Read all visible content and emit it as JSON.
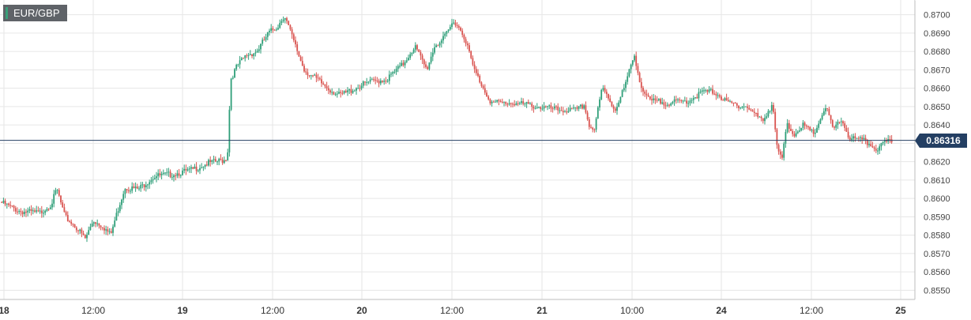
{
  "symbol": "EUR/GBP",
  "current_price": "0.86316",
  "colors": {
    "up": "#2e9e78",
    "down": "#d9534f",
    "price_line": "#243f63"
  },
  "chart_data": {
    "type": "candlestick",
    "title": "EUR/GBP",
    "ylim": [
      0.8545,
      0.8708
    ],
    "y_ticks": [
      0.855,
      0.856,
      0.857,
      0.858,
      0.859,
      0.86,
      0.861,
      0.862,
      0.863,
      0.864,
      0.865,
      0.866,
      0.867,
      0.868,
      0.869,
      0.87
    ],
    "y_tick_labels": [
      "0.8550",
      "0.8560",
      "0.8570",
      "0.8580",
      "0.8590",
      "0.8600",
      "0.8610",
      "0.8620",
      "0.8630",
      "0.8640",
      "0.8650",
      "0.8660",
      "0.8670",
      "0.8680",
      "0.8690",
      "0.8700"
    ],
    "x_ticks": [
      "18",
      "12:00",
      "19",
      "12:00",
      "20",
      "12:00",
      "21",
      "10:00",
      "24",
      "12:00",
      "25"
    ],
    "grid": true,
    "current_price": 0.86316,
    "price_path": [
      {
        "t": 0,
        "p": 0.8598
      },
      {
        "t": 25,
        "p": 0.8593
      },
      {
        "t": 50,
        "p": 0.8592
      },
      {
        "t": 65,
        "p": 0.8597
      },
      {
        "t": 72,
        "p": 0.8605
      },
      {
        "t": 82,
        "p": 0.859
      },
      {
        "t": 95,
        "p": 0.8585
      },
      {
        "t": 108,
        "p": 0.8578
      },
      {
        "t": 118,
        "p": 0.8588
      },
      {
        "t": 130,
        "p": 0.8585
      },
      {
        "t": 140,
        "p": 0.858
      },
      {
        "t": 150,
        "p": 0.8595
      },
      {
        "t": 158,
        "p": 0.8606
      },
      {
        "t": 175,
        "p": 0.8605
      },
      {
        "t": 195,
        "p": 0.8612
      },
      {
        "t": 215,
        "p": 0.8613
      },
      {
        "t": 240,
        "p": 0.8615
      },
      {
        "t": 262,
        "p": 0.8619
      },
      {
        "t": 285,
        "p": 0.8621
      },
      {
        "t": 288,
        "p": 0.8624
      },
      {
        "t": 292,
        "p": 0.8665
      },
      {
        "t": 300,
        "p": 0.8672
      },
      {
        "t": 312,
        "p": 0.8678
      },
      {
        "t": 325,
        "p": 0.868
      },
      {
        "t": 340,
        "p": 0.869
      },
      {
        "t": 352,
        "p": 0.8694
      },
      {
        "t": 360,
        "p": 0.87
      },
      {
        "t": 372,
        "p": 0.8685
      },
      {
        "t": 385,
        "p": 0.867
      },
      {
        "t": 400,
        "p": 0.8665
      },
      {
        "t": 415,
        "p": 0.866
      },
      {
        "t": 430,
        "p": 0.8656
      },
      {
        "t": 450,
        "p": 0.866
      },
      {
        "t": 465,
        "p": 0.8663
      },
      {
        "t": 490,
        "p": 0.8665
      },
      {
        "t": 510,
        "p": 0.8673
      },
      {
        "t": 525,
        "p": 0.8683
      },
      {
        "t": 540,
        "p": 0.867
      },
      {
        "t": 550,
        "p": 0.8683
      },
      {
        "t": 562,
        "p": 0.8687
      },
      {
        "t": 575,
        "p": 0.8697
      },
      {
        "t": 588,
        "p": 0.8688
      },
      {
        "t": 600,
        "p": 0.867
      },
      {
        "t": 612,
        "p": 0.866
      },
      {
        "t": 622,
        "p": 0.8652
      },
      {
        "t": 650,
        "p": 0.8652
      },
      {
        "t": 680,
        "p": 0.865
      },
      {
        "t": 710,
        "p": 0.8648
      },
      {
        "t": 730,
        "p": 0.8648
      },
      {
        "t": 740,
        "p": 0.8651
      },
      {
        "t": 745,
        "p": 0.864
      },
      {
        "t": 752,
        "p": 0.8637
      },
      {
        "t": 762,
        "p": 0.866
      },
      {
        "t": 770,
        "p": 0.8655
      },
      {
        "t": 778,
        "p": 0.8648
      },
      {
        "t": 790,
        "p": 0.866
      },
      {
        "t": 803,
        "p": 0.8678
      },
      {
        "t": 812,
        "p": 0.866
      },
      {
        "t": 822,
        "p": 0.8653
      },
      {
        "t": 850,
        "p": 0.8652
      },
      {
        "t": 870,
        "p": 0.8653
      },
      {
        "t": 890,
        "p": 0.8658
      },
      {
        "t": 905,
        "p": 0.8658
      },
      {
        "t": 920,
        "p": 0.8652
      },
      {
        "t": 945,
        "p": 0.865
      },
      {
        "t": 965,
        "p": 0.8642
      },
      {
        "t": 978,
        "p": 0.8652
      },
      {
        "t": 984,
        "p": 0.8625
      },
      {
        "t": 990,
        "p": 0.8622
      },
      {
        "t": 996,
        "p": 0.864
      },
      {
        "t": 1005,
        "p": 0.8635
      },
      {
        "t": 1015,
        "p": 0.864
      },
      {
        "t": 1030,
        "p": 0.8635
      },
      {
        "t": 1045,
        "p": 0.865
      },
      {
        "t": 1055,
        "p": 0.8637
      },
      {
        "t": 1065,
        "p": 0.8643
      },
      {
        "t": 1075,
        "p": 0.8633
      },
      {
        "t": 1095,
        "p": 0.8631
      },
      {
        "t": 1110,
        "p": 0.8627
      },
      {
        "t": 1120,
        "p": 0.863
      },
      {
        "t": 1130,
        "p": 0.86316
      }
    ]
  }
}
